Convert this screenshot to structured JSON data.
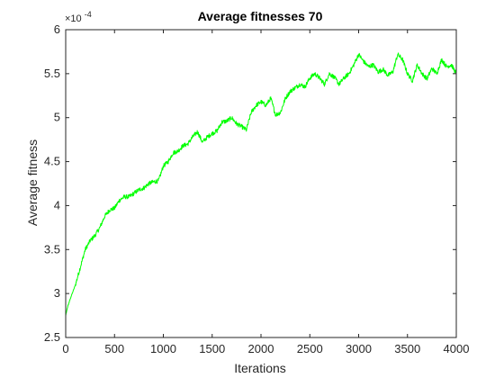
{
  "chart_data": {
    "type": "line",
    "title": "Average fitnesses 70",
    "xlabel": "Iterations",
    "ylabel": "Average fitness",
    "y_exponent_label": "×10",
    "y_exponent_power": "-4",
    "xlim": [
      0,
      4000
    ],
    "ylim": [
      2.5,
      6
    ],
    "x_ticks": [
      "0",
      "500",
      "1000",
      "1500",
      "2000",
      "2500",
      "3000",
      "3500",
      "4000"
    ],
    "y_ticks": [
      "2.5",
      "3",
      "3.5",
      "4",
      "4.5",
      "5",
      "5.5",
      "6"
    ],
    "grid": false,
    "box": true,
    "series": [
      {
        "color": "#00ff00",
        "x": [
          0,
          20,
          50,
          100,
          150,
          200,
          250,
          300,
          350,
          400,
          450,
          500,
          550,
          600,
          650,
          700,
          750,
          800,
          850,
          900,
          950,
          1000,
          1050,
          1100,
          1150,
          1200,
          1250,
          1300,
          1350,
          1400,
          1450,
          1500,
          1550,
          1600,
          1650,
          1700,
          1750,
          1800,
          1850,
          1900,
          1950,
          2000,
          2050,
          2100,
          2150,
          2200,
          2250,
          2300,
          2350,
          2400,
          2450,
          2500,
          2550,
          2600,
          2650,
          2700,
          2750,
          2800,
          2850,
          2900,
          2950,
          3000,
          3050,
          3100,
          3150,
          3200,
          3250,
          3300,
          3350,
          3400,
          3450,
          3500,
          3550,
          3600,
          3650,
          3700,
          3750,
          3800,
          3850,
          3900,
          3950,
          4000
        ],
        "y": [
          2.75,
          2.85,
          2.95,
          3.1,
          3.3,
          3.5,
          3.6,
          3.66,
          3.75,
          3.88,
          3.95,
          3.97,
          4.06,
          4.1,
          4.1,
          4.14,
          4.18,
          4.2,
          4.25,
          4.27,
          4.28,
          4.45,
          4.5,
          4.6,
          4.62,
          4.68,
          4.7,
          4.78,
          4.84,
          4.72,
          4.78,
          4.82,
          4.85,
          4.95,
          4.96,
          5.0,
          4.93,
          4.9,
          4.86,
          5.06,
          5.14,
          5.18,
          5.14,
          5.22,
          5.03,
          5.06,
          5.22,
          5.3,
          5.34,
          5.38,
          5.35,
          5.45,
          5.5,
          5.45,
          5.38,
          5.5,
          5.46,
          5.38,
          5.45,
          5.5,
          5.6,
          5.72,
          5.64,
          5.58,
          5.6,
          5.52,
          5.55,
          5.48,
          5.52,
          5.72,
          5.66,
          5.5,
          5.42,
          5.6,
          5.5,
          5.44,
          5.56,
          5.5,
          5.66,
          5.58,
          5.6,
          5.5
        ]
      }
    ]
  }
}
